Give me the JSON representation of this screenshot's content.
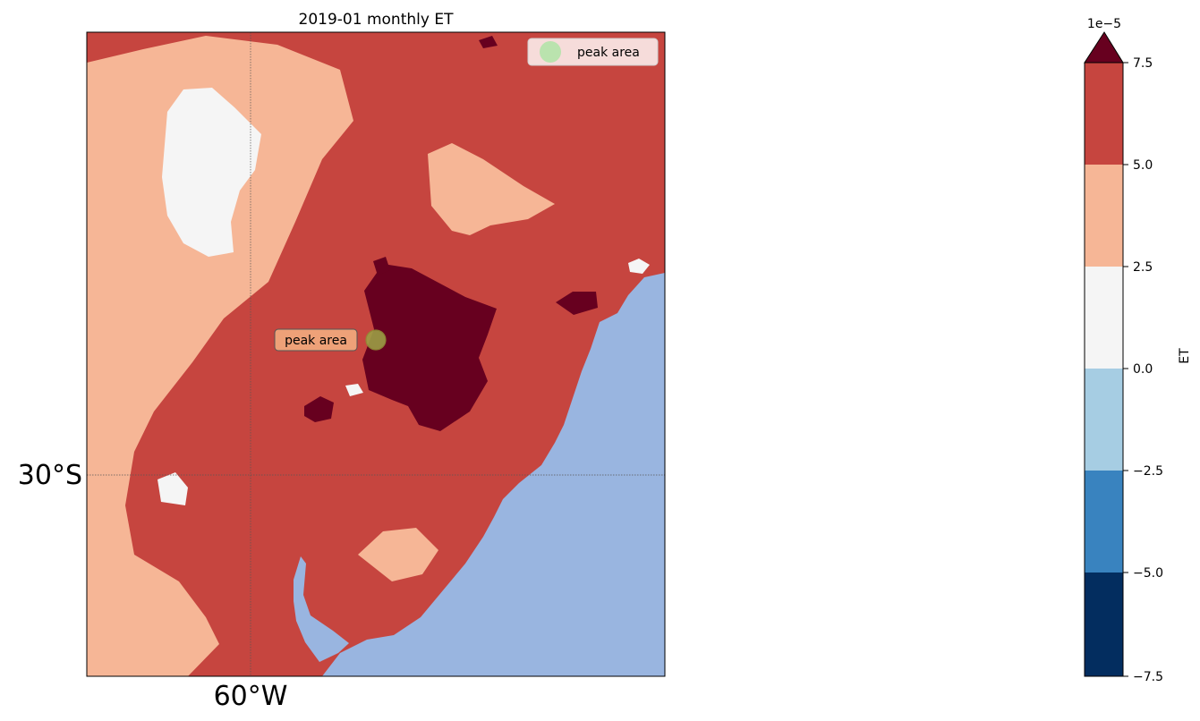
{
  "map": {
    "title": "2019-01 monthly ET",
    "lat_label": "30°S",
    "lon_label": "60°W",
    "legend_label": "peak area",
    "annotation_label": "peak area"
  },
  "colorbar": {
    "label": "ET",
    "exponent": "1e−5",
    "ticks": [
      "7.5",
      "5.0",
      "2.5",
      "0.0",
      "−2.5",
      "−5.0",
      "−7.5"
    ],
    "colors": [
      "#67001f",
      "#c6453f",
      "#f6b696",
      "#f5f5f5",
      "#a6cde3",
      "#3983bf",
      "#032d5f"
    ]
  },
  "colors": {
    "ocean": "#99b5e0",
    "low": "#f6b696",
    "mid": "#c6453f",
    "high": "#67001f",
    "neutral": "#f5f5f5",
    "legend_marker": "#b6e3ac",
    "annotation_box": "#eea178"
  }
}
